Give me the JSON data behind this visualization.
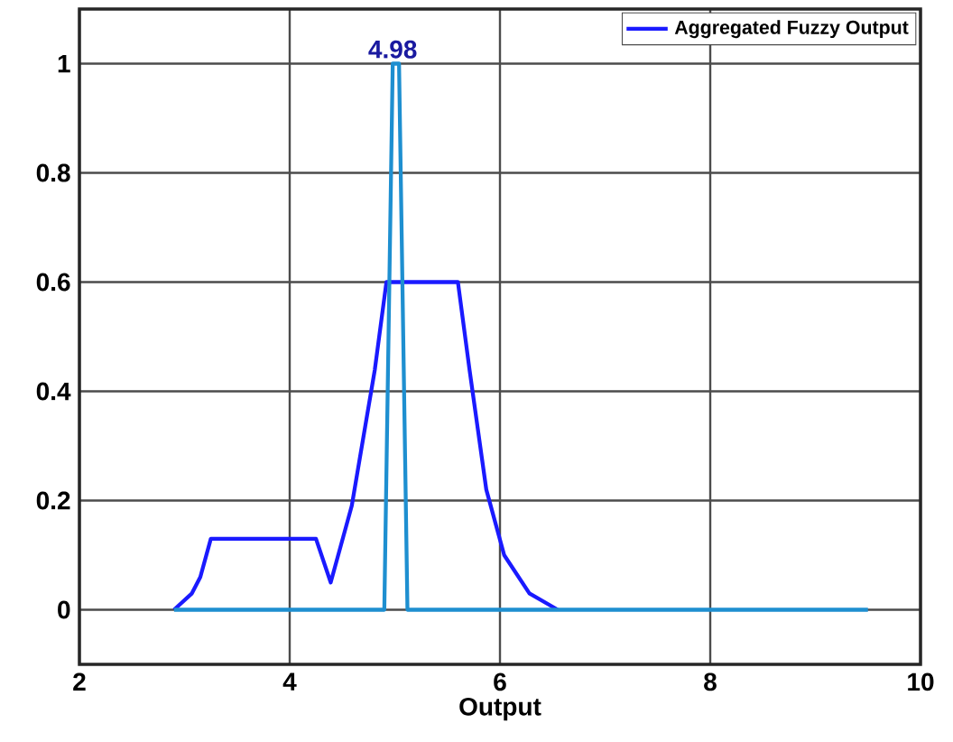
{
  "chart_data": {
    "type": "line",
    "xlabel": "Output",
    "xlim": [
      2,
      10
    ],
    "ylim": [
      -0.1,
      1.1
    ],
    "xticks": [
      2,
      4,
      6,
      8,
      10
    ],
    "yticks": [
      0,
      0.2,
      0.4,
      0.6,
      0.8,
      1
    ],
    "grid": true,
    "legend": "top right",
    "marker": "none",
    "line_style": "solid",
    "series": [
      {
        "name": "Aggregated Fuzzy Output",
        "color": "#1a1aff",
        "x": [
          2.9,
          3.07,
          3.15,
          3.25,
          4.25,
          4.39,
          4.59,
          4.81,
          4.92,
          5.6,
          5.71,
          5.87,
          6.04,
          6.28,
          6.55
        ],
        "values": [
          0,
          0.03,
          0.06,
          0.13,
          0.13,
          0.05,
          0.19,
          0.44,
          0.6,
          0.6,
          0.44,
          0.22,
          0.1,
          0.03,
          0
        ]
      },
      {
        "color": "#1e8fd0",
        "x": [
          2.9,
          4.9,
          4.98,
          5.04,
          5.12,
          9.5
        ],
        "values": [
          0,
          0,
          1,
          1,
          0,
          0
        ]
      }
    ],
    "annotations": [
      {
        "text": "4.98",
        "x": 4.98,
        "y": 1
      }
    ]
  }
}
